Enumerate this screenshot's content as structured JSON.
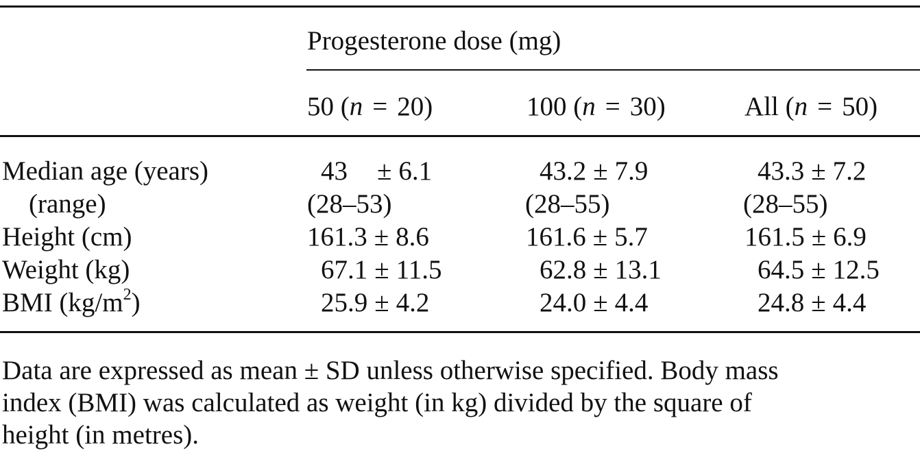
{
  "table": {
    "spanning_header": "Progesterone dose (mg)",
    "columns": [
      {
        "dose": "50",
        "n_label": "n",
        "eq": "=",
        "n_value": "20"
      },
      {
        "dose": "100",
        "n_label": "n",
        "eq": "=",
        "n_value": "30"
      },
      {
        "dose": "All",
        "n_label": "n",
        "eq": "=",
        "n_value": "50"
      }
    ],
    "rows": [
      {
        "label": "Median age (years)",
        "cells": [
          {
            "mean": "43",
            "pm": "±",
            "sd": "6.1"
          },
          {
            "mean": "43.2",
            "pm": "±",
            "sd": "7.9"
          },
          {
            "mean": "43.3",
            "pm": "±",
            "sd": "7.2"
          }
        ]
      },
      {
        "label": "(range)",
        "cells": [
          {
            "text": "(28–53)"
          },
          {
            "text": "(28–55)"
          },
          {
            "text": "(28–55)"
          }
        ]
      },
      {
        "label": "Height (cm)",
        "cells": [
          {
            "mean": "161.3",
            "pm": "±",
            "sd": "8.6"
          },
          {
            "mean": "161.6",
            "pm": "±",
            "sd": "5.7"
          },
          {
            "mean": "161.5",
            "pm": "±",
            "sd": "6.9"
          }
        ]
      },
      {
        "label": "Weight (kg)",
        "cells": [
          {
            "mean": "67.1",
            "pm": "±",
            "sd": "11.5"
          },
          {
            "mean": "62.8",
            "pm": "±",
            "sd": "13.1"
          },
          {
            "mean": "64.5",
            "pm": "±",
            "sd": "12.5"
          }
        ]
      },
      {
        "label": "BMI (kg/m",
        "label_sup": "2",
        "label_tail": ")",
        "cells": [
          {
            "mean": "25.9",
            "pm": "±",
            "sd": "4.2"
          },
          {
            "mean": "24.0",
            "pm": "±",
            "sd": "4.4"
          },
          {
            "mean": "24.8",
            "pm": "±",
            "sd": "4.4"
          }
        ]
      }
    ]
  },
  "footnote": {
    "lines": [
      "Data are expressed as mean ± SD unless otherwise specified. Body mass",
      "index (BMI) was calculated as weight (in kg) divided by the square of",
      "height (in metres)."
    ]
  }
}
